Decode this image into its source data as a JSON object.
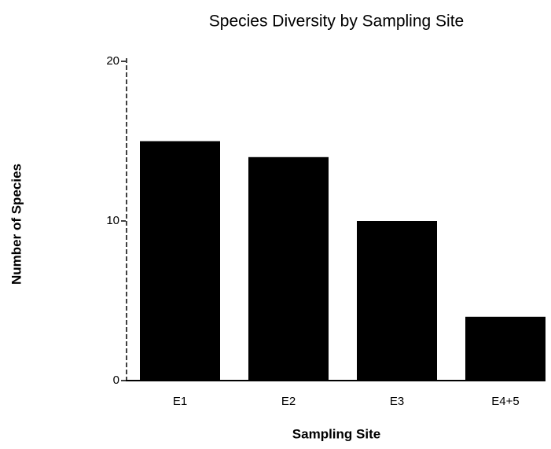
{
  "chart_data": {
    "type": "bar",
    "title": "Species Diversity by Sampling Site",
    "x_label": "Sampling Site",
    "y_label": "Number of Species",
    "categories": [
      "E1",
      "E2",
      "E3",
      "E4+5"
    ],
    "values": [
      15,
      14,
      10,
      4
    ],
    "color": "#000000",
    "ylim": [
      0,
      20
    ],
    "yticks": [
      0,
      10,
      20
    ],
    "grid": false
  }
}
